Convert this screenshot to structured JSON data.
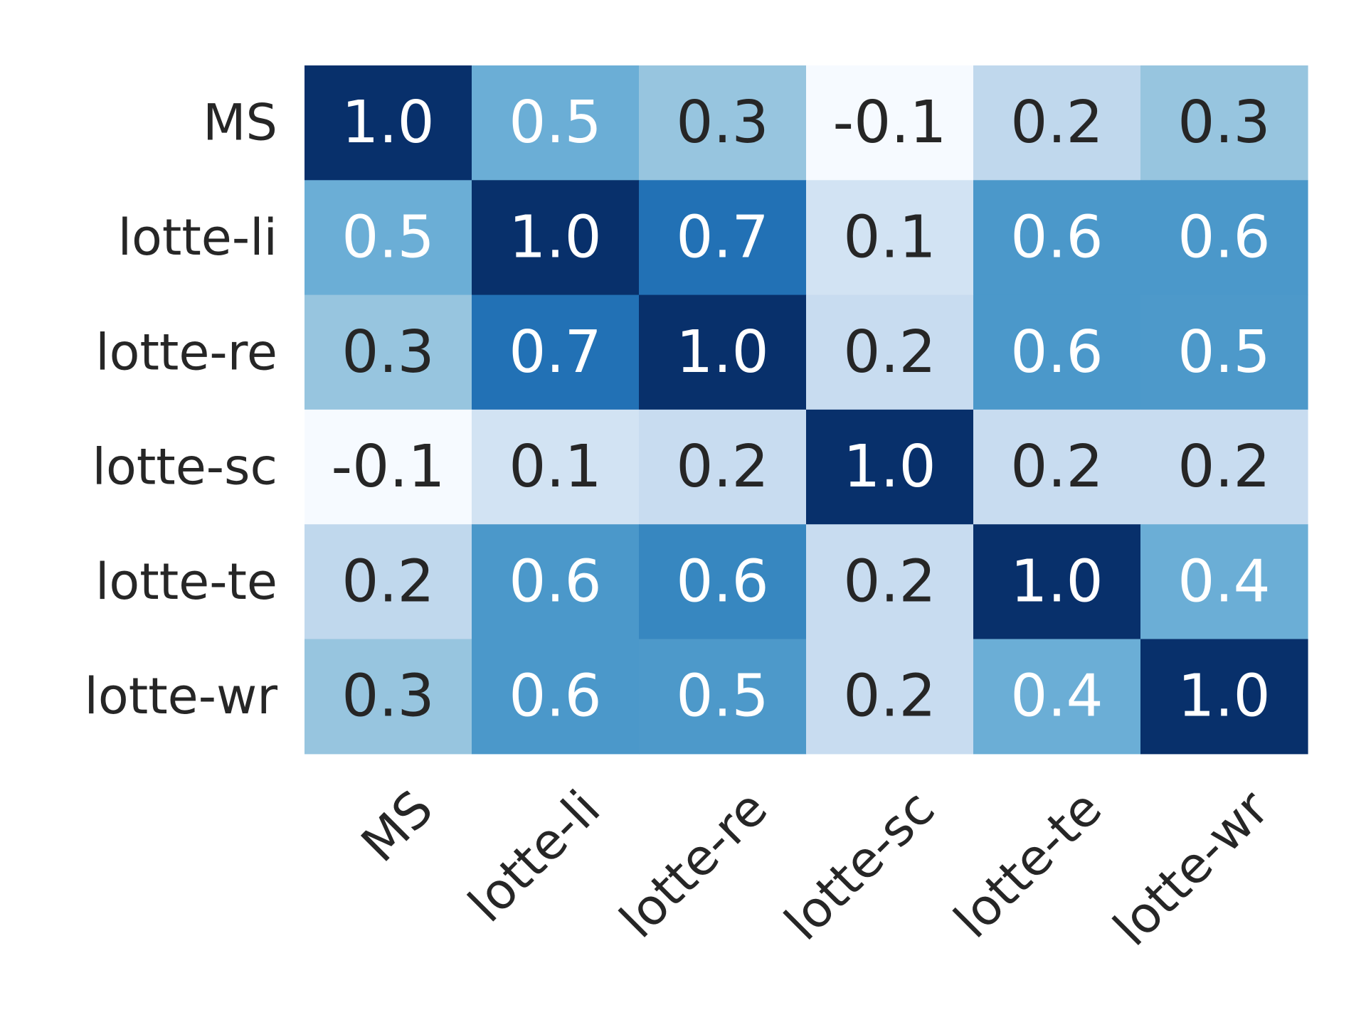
{
  "chart_data": {
    "type": "heatmap",
    "title": "",
    "xlabel": "",
    "ylabel": "",
    "row_labels": [
      "MS",
      "lotte-li",
      "lotte-re",
      "lotte-sc",
      "lotte-te",
      "lotte-wr"
    ],
    "col_labels": [
      "MS",
      "lotte-li",
      "lotte-re",
      "lotte-sc",
      "lotte-te",
      "lotte-wr"
    ],
    "values": [
      [
        1.0,
        0.5,
        0.3,
        -0.1,
        0.2,
        0.3
      ],
      [
        0.5,
        1.0,
        0.7,
        0.1,
        0.6,
        0.6
      ],
      [
        0.3,
        0.7,
        1.0,
        0.2,
        0.6,
        0.5
      ],
      [
        -0.1,
        0.1,
        0.2,
        1.0,
        0.2,
        0.2
      ],
      [
        0.2,
        0.6,
        0.6,
        0.2,
        1.0,
        0.4
      ],
      [
        0.3,
        0.6,
        0.5,
        0.2,
        0.4,
        1.0
      ]
    ],
    "value_labels": [
      [
        "1.0",
        "0.5",
        "0.3",
        "-0.1",
        "0.2",
        "0.3"
      ],
      [
        "0.5",
        "1.0",
        "0.7",
        "0.1",
        "0.6",
        "0.6"
      ],
      [
        "0.3",
        "0.7",
        "1.0",
        "0.2",
        "0.6",
        "0.5"
      ],
      [
        "-0.1",
        "0.1",
        "0.2",
        "1.0",
        "0.2",
        "0.2"
      ],
      [
        "0.2",
        "0.6",
        "0.6",
        "0.2",
        "1.0",
        "0.4"
      ],
      [
        "0.3",
        "0.6",
        "0.5",
        "0.2",
        "0.4",
        "1.0"
      ]
    ],
    "cell_colors": [
      [
        "#08306b",
        "#6baed6",
        "#97c5df",
        "#f6faff",
        "#c0d8ed",
        "#97c5df"
      ],
      [
        "#6baed6",
        "#08306b",
        "#2271b5",
        "#d2e3f3",
        "#4b98ca",
        "#4b98ca"
      ],
      [
        "#97c5df",
        "#2271b5",
        "#08306b",
        "#c8dcf0",
        "#4b98ca",
        "#4d99ca"
      ],
      [
        "#f6faff",
        "#d2e3f3",
        "#c8dcf0",
        "#08306b",
        "#c8dcf0",
        "#c8dcf0"
      ],
      [
        "#c0d8ed",
        "#4b98ca",
        "#3787c0",
        "#c8dcf0",
        "#08306b",
        "#6baed6"
      ],
      [
        "#97c5df",
        "#4b98ca",
        "#4d99ca",
        "#c8dcf0",
        "#6baed6",
        "#08306b"
      ]
    ],
    "colormap": "Blues",
    "text_color_dark": "#262626",
    "text_color_light": "#ffffff",
    "label_color": "#262626",
    "colorbar": false,
    "grid": false,
    "x_tick_rotation": 45
  }
}
